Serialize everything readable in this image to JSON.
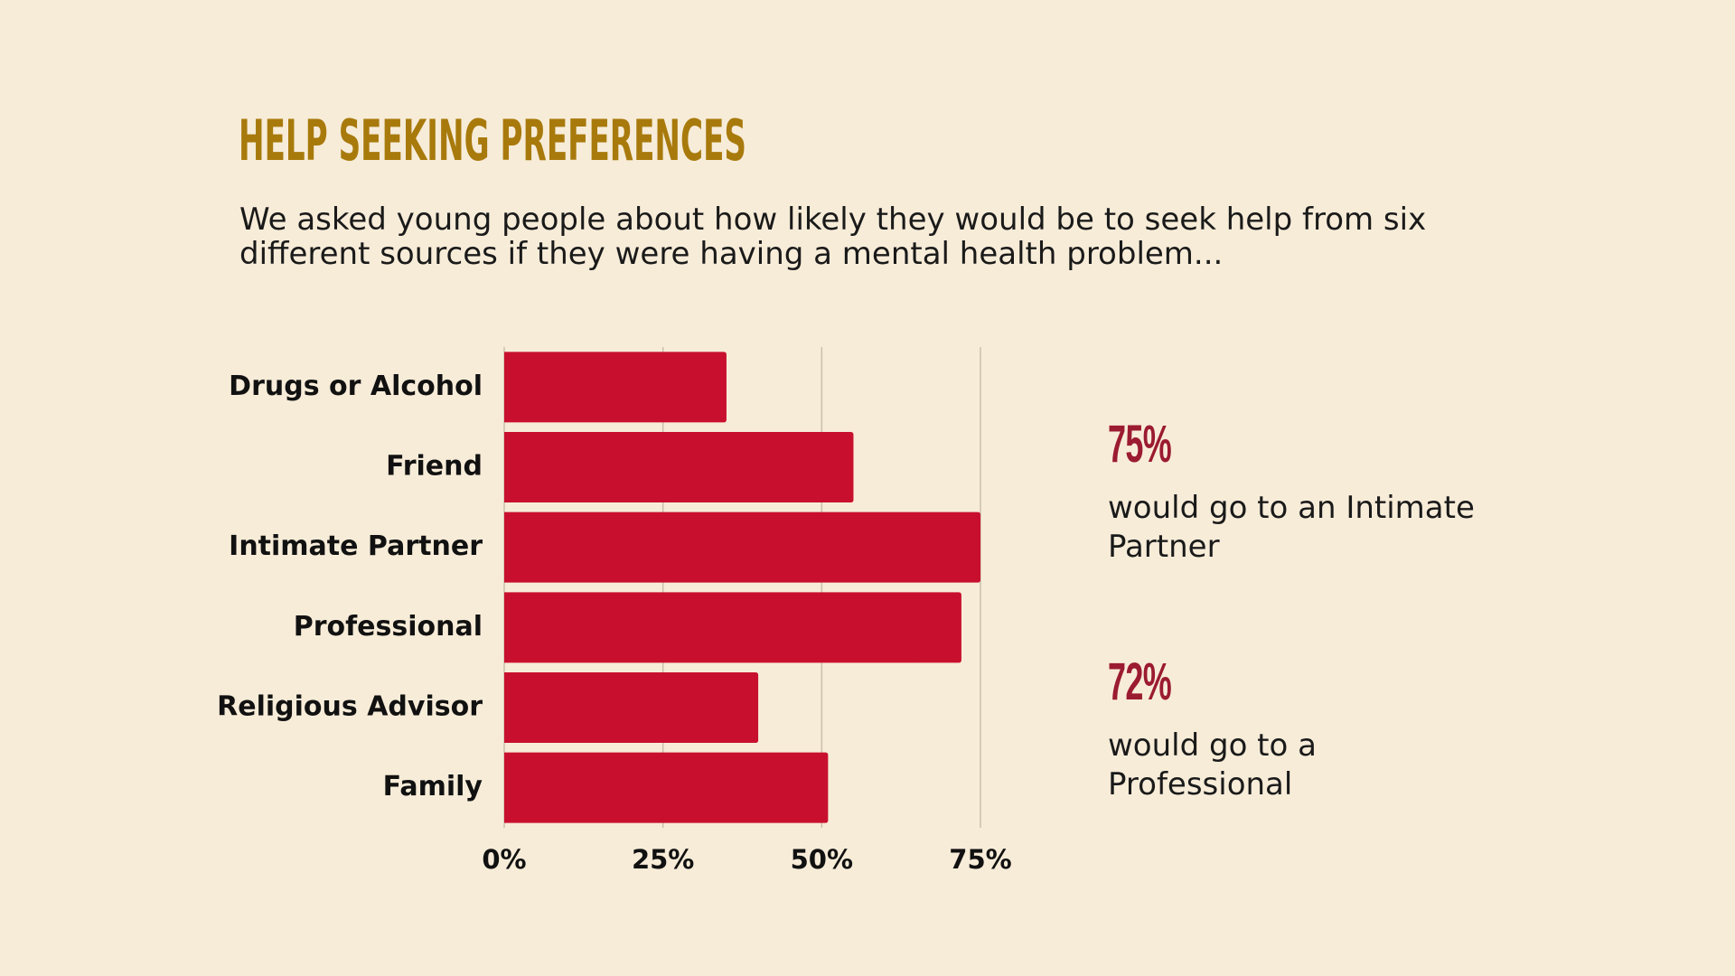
{
  "chart_data": {
    "type": "bar",
    "orientation": "horizontal",
    "title": "HELP SEEKING PREFERENCES",
    "subtitle": "We asked young people about how likely they would be to seek help from six different sources if they were having a mental health problem...",
    "categories": [
      "Drugs or Alcohol",
      "Friend",
      "Intimate Partner",
      "Professional",
      "Religious Advisor",
      "Family"
    ],
    "values": [
      35,
      55,
      75,
      72,
      40,
      51
    ],
    "color": "#c8102e",
    "xlim": [
      0,
      75
    ],
    "xticks": [
      {
        "value": 0,
        "label": "0%"
      },
      {
        "value": 25,
        "label": "25%"
      },
      {
        "value": 50,
        "label": "50%"
      },
      {
        "value": 75,
        "label": "75%"
      }
    ],
    "grid": true,
    "annotations": [
      {
        "label": "75%",
        "text": "would go to an Intimate Partner"
      },
      {
        "label": "72%",
        "text": "would go to a Professional"
      }
    ]
  }
}
